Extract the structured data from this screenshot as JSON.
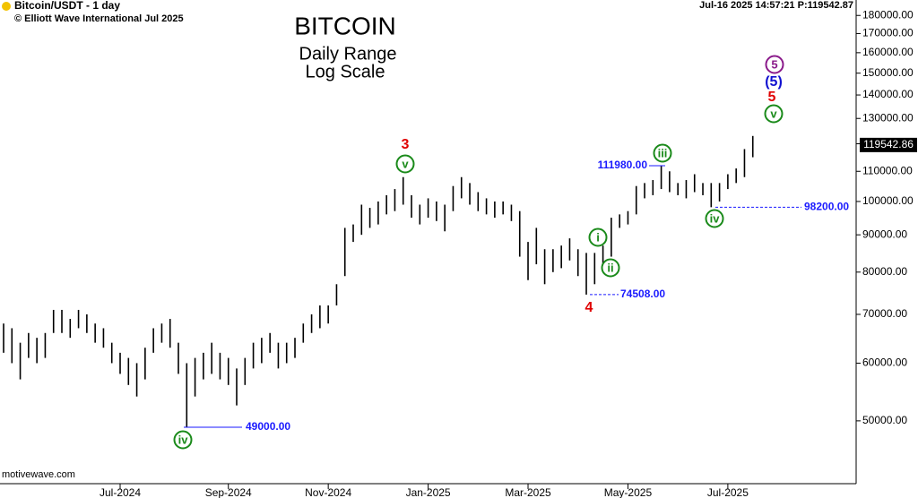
{
  "chart_data": {
    "type": "range-bar",
    "header": "Bitcoin/USDT - 1 day",
    "copyright": "© Elliott Wave International Jul 2025",
    "quote": "Jul-16 2025  14:57:21  P:119542.87",
    "title": "BITCOIN",
    "subtitle": "Daily Range",
    "scale_note": "Log Scale",
    "watermark": "motivewave.com",
    "log_scale": true,
    "color": "#000000",
    "categories": [
      null,
      null,
      null,
      null,
      null,
      null,
      null,
      null,
      null,
      null,
      null,
      null,
      null,
      null,
      "Jul-2024",
      null,
      null,
      null,
      null,
      null,
      null,
      null,
      null,
      null,
      null,
      null,
      null,
      "Sep-2024",
      null,
      null,
      null,
      null,
      null,
      null,
      null,
      null,
      null,
      null,
      null,
      "Nov-2024",
      null,
      null,
      null,
      null,
      null,
      null,
      null,
      null,
      null,
      null,
      null,
      "Jan-2025",
      null,
      null,
      null,
      null,
      null,
      null,
      null,
      null,
      null,
      null,
      null,
      "Mar-2025",
      null,
      null,
      null,
      null,
      null,
      null,
      null,
      null,
      null,
      null,
      null,
      "May-2025",
      null,
      null,
      null,
      null,
      null,
      null,
      null,
      null,
      null,
      null,
      null,
      "Jul-2025",
      null,
      null,
      null
    ],
    "high": [
      68000,
      67000,
      64000,
      66000,
      65000,
      66000,
      71000,
      71000,
      69000,
      71000,
      70000,
      68000,
      67000,
      64000,
      62000,
      61000,
      60000,
      63000,
      67000,
      68000,
      69000,
      64000,
      60000,
      61000,
      62000,
      64000,
      62000,
      61000,
      59000,
      61000,
      64000,
      65000,
      66000,
      64000,
      64000,
      65000,
      68000,
      70000,
      72000,
      72000,
      77000,
      92000,
      93000,
      99000,
      98000,
      100000,
      102000,
      104000,
      108000,
      102000,
      99000,
      101000,
      100000,
      99000,
      105000,
      108000,
      106000,
      103000,
      101000,
      100000,
      100000,
      99000,
      97000,
      88000,
      92000,
      86000,
      86000,
      87000,
      89000,
      86000,
      85000,
      85000,
      87000,
      95000,
      96000,
      97000,
      105000,
      106000,
      107000,
      111980,
      110000,
      106000,
      107000,
      109000,
      106000,
      106000,
      106000,
      109000,
      111000,
      118000,
      123000
    ],
    "low": [
      62000,
      60000,
      57000,
      61000,
      60000,
      61000,
      66000,
      66000,
      65000,
      67000,
      66000,
      64000,
      63000,
      60000,
      58000,
      56000,
      54000,
      57000,
      62000,
      64000,
      63000,
      58000,
      49000,
      54000,
      57000,
      58000,
      57000,
      56000,
      52500,
      56000,
      59000,
      60000,
      62000,
      59000,
      60000,
      61000,
      64000,
      66000,
      67000,
      68000,
      72000,
      79000,
      88000,
      90000,
      92000,
      93000,
      96000,
      97000,
      99000,
      95000,
      93000,
      95000,
      94000,
      91000,
      97000,
      101000,
      99000,
      97000,
      96000,
      95000,
      96000,
      94000,
      84000,
      78000,
      82000,
      77000,
      80000,
      81000,
      83000,
      79000,
      74508,
      77000,
      82000,
      84000,
      92000,
      93000,
      96000,
      101000,
      102000,
      104000,
      103000,
      102000,
      101000,
      103000,
      102000,
      98200,
      100000,
      104000,
      106000,
      108000,
      115000
    ],
    "ylim": [
      41000,
      189000
    ],
    "yticks": [
      {
        "value": 50000,
        "label": "50000.00"
      },
      {
        "value": 60000,
        "label": "60000.00"
      },
      {
        "value": 70000,
        "label": "70000.00"
      },
      {
        "value": 80000,
        "label": "80000.00"
      },
      {
        "value": 90000,
        "label": "90000.00"
      },
      {
        "value": 100000,
        "label": "100000.00"
      },
      {
        "value": 110000,
        "label": "110000.00"
      },
      {
        "value": 120000,
        "label": "120000.00"
      },
      {
        "value": 130000,
        "label": "130000.00"
      },
      {
        "value": 140000,
        "label": "140000.00"
      },
      {
        "value": 150000,
        "label": "150000.00"
      },
      {
        "value": 160000,
        "label": "160000.00"
      },
      {
        "value": 170000,
        "label": "170000.00"
      },
      {
        "value": 180000,
        "label": "180000.00"
      }
    ],
    "last_price": {
      "value": 119542.86,
      "label": "119542.86"
    },
    "levels": [
      {
        "value": 49000,
        "label": "49000.00"
      },
      {
        "value": 74508,
        "label": "74508.00"
      },
      {
        "value": 111980,
        "label": "111980.00"
      },
      {
        "value": 98200,
        "label": "98200.00"
      }
    ],
    "wave_labels": [
      "iv",
      "v",
      "3",
      "4",
      "i",
      "ii",
      "iii",
      "iv",
      "v",
      "5",
      "(5)",
      "5"
    ]
  }
}
